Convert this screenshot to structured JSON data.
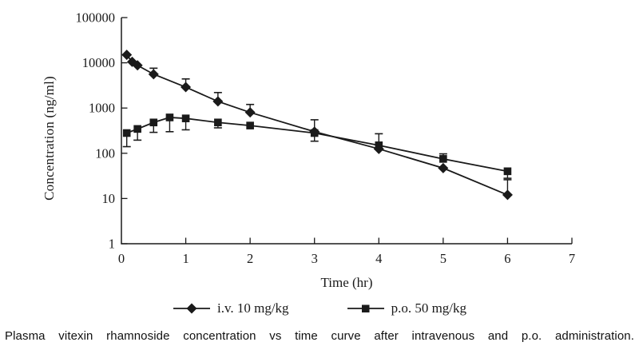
{
  "caption": "Plasma vitexin rhamnoside concentration vs time curve after intravenous and p.o. administration.",
  "chart_data": {
    "type": "line",
    "title": "",
    "xlabel": "Time (hr)",
    "ylabel": "Concentration (ng/ml)",
    "x_range": [
      0,
      7
    ],
    "x_ticks": [
      0,
      1,
      2,
      3,
      4,
      5,
      6,
      7
    ],
    "y_scale": "log",
    "y_range": [
      1,
      100000
    ],
    "y_ticks": [
      1,
      10,
      100,
      1000,
      10000,
      100000
    ],
    "grid": false,
    "legend_position": "bottom",
    "line_color": "#1a1a1a",
    "series": [
      {
        "name": "i.v. 10 mg/kg",
        "marker": "diamond",
        "points": [
          {
            "t": 0.083,
            "v": 15000
          },
          {
            "t": 0.167,
            "v": 10500
          },
          {
            "t": 0.25,
            "v": 8800
          },
          {
            "t": 0.5,
            "v": 5600,
            "err_hi": 7600
          },
          {
            "t": 1,
            "v": 2900,
            "err_hi": 4400
          },
          {
            "t": 1.5,
            "v": 1400,
            "err_hi": 2200
          },
          {
            "t": 2,
            "v": 800,
            "err_hi": 1200
          },
          {
            "t": 3,
            "v": 300,
            "err_hi": 550,
            "err_lo": 185
          },
          {
            "t": 4,
            "v": 125
          },
          {
            "t": 5,
            "v": 47
          },
          {
            "t": 6,
            "v": 12,
            "err_hi": 26
          }
        ]
      },
      {
        "name": "p.o. 50 mg/kg",
        "marker": "square",
        "points": [
          {
            "t": 0.083,
            "v": 280,
            "err_lo": 140
          },
          {
            "t": 0.25,
            "v": 345,
            "err_lo": 195
          },
          {
            "t": 0.5,
            "v": 480,
            "err_lo": 290
          },
          {
            "t": 0.75,
            "v": 620,
            "err_lo": 300
          },
          {
            "t": 1,
            "v": 590,
            "err_lo": 330
          },
          {
            "t": 1.5,
            "v": 480,
            "err_lo": 365
          },
          {
            "t": 2,
            "v": 410
          },
          {
            "t": 3,
            "v": 280
          },
          {
            "t": 4,
            "v": 150,
            "err_hi": 270
          },
          {
            "t": 5,
            "v": 75,
            "err_hi": 97
          },
          {
            "t": 6,
            "v": 40,
            "err_lo": 28
          }
        ]
      }
    ]
  }
}
